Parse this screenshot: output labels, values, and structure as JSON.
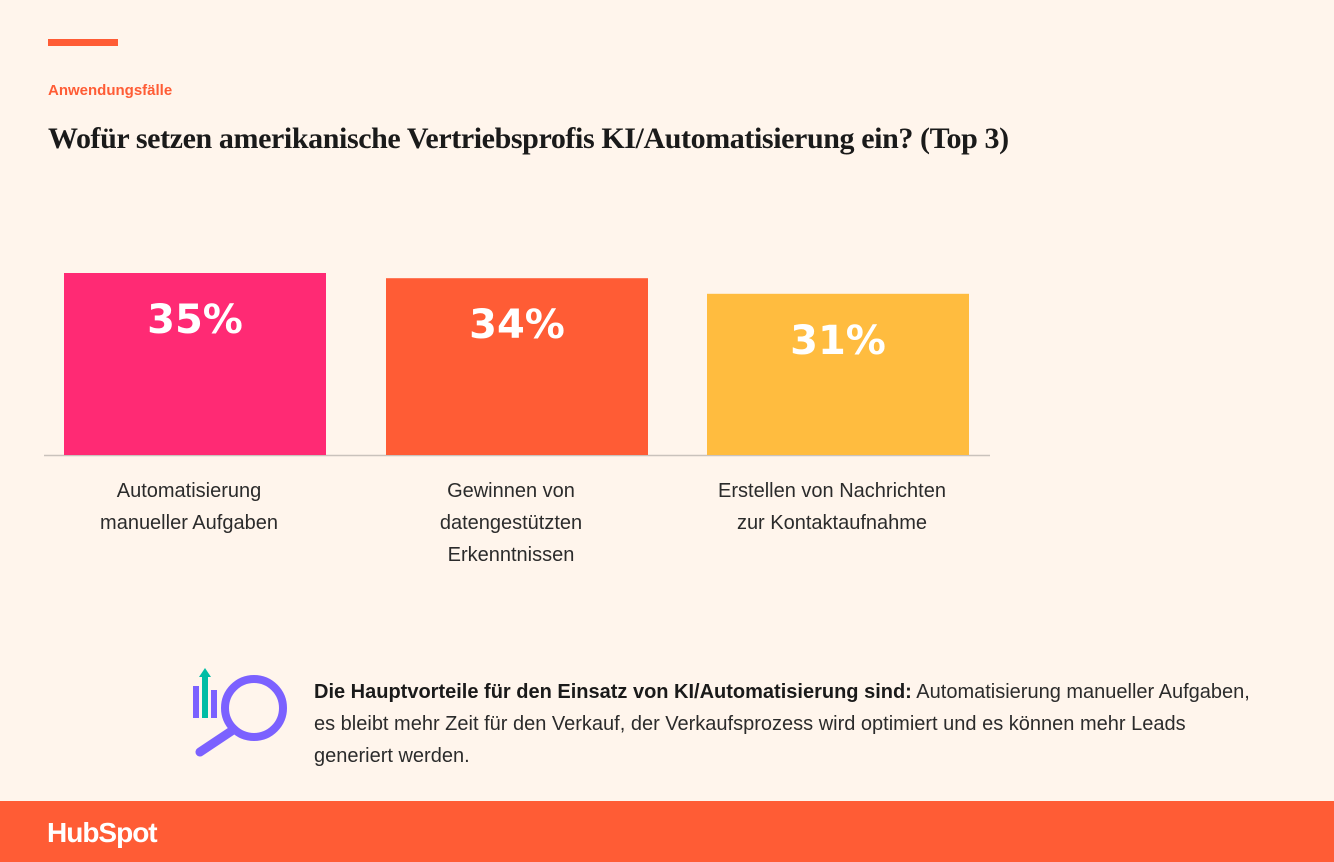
{
  "header": {
    "eyebrow": "Anwendungsfälle",
    "title": "Wofür setzen amerikanische Vertriebsprofis KI/Automatisierung ein? (Top 3)"
  },
  "chart_data": {
    "type": "bar",
    "categories": [
      [
        "Automatisierung",
        "manueller Aufgaben"
      ],
      [
        "Gewinnen von",
        "datengestützten",
        "Erkenntnissen"
      ],
      [
        "Erstellen von Nachrichten",
        "zur Kontaktaufnahme"
      ]
    ],
    "values": [
      35,
      34,
      31
    ],
    "value_labels": [
      "35%",
      "34%",
      "31%"
    ],
    "colors": [
      "#FF2A74",
      "#FF5C35",
      "#FFBC3F"
    ],
    "ylim": [
      0,
      35
    ],
    "grid": false,
    "legend": "none"
  },
  "callout": {
    "icon": "magnifier-chart-icon",
    "bold": "Die Hauptvorteile für den Einsatz von KI/Automatisierung sind:",
    "text": " Automatisierung manueller Aufgaben, es bleibt mehr Zeit für den Verkauf, der Verkaufsprozess wird optimiert und es können mehr Leads generiert werden."
  },
  "footer": {
    "logo": "HubSpot",
    "background": "#FF5C35"
  }
}
